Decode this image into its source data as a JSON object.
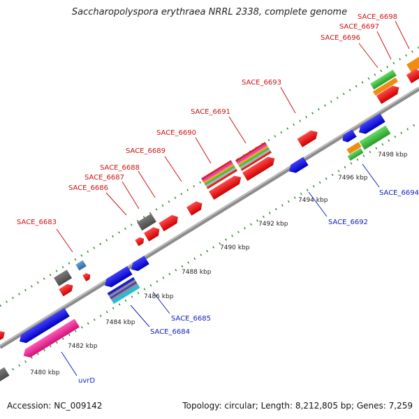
{
  "title": "Saccharopolyspora erythraea NRRL 2338, complete genome",
  "footer": {
    "accession": "Accession: NC_009142",
    "summary": "Topology: circular; Length: 8,212,805 bp; Genes: 7,259"
  },
  "colors": {
    "backbone": "#9a9a9a",
    "track_dots": "#2b8a2b",
    "label_top": "#d01010",
    "label_bottom": "#1020c0",
    "tick_label": "#222222"
  },
  "ticks": [
    {
      "label": "7480 kbp"
    },
    {
      "label": "7482 kbp"
    },
    {
      "label": "7484 kbp"
    },
    {
      "label": "7486 kbp"
    },
    {
      "label": "7488 kbp"
    },
    {
      "label": "7490 kbp"
    },
    {
      "label": "7492 kbp"
    },
    {
      "label": "7494 kbp"
    },
    {
      "label": "7496 kbp"
    },
    {
      "label": "7498 kbp"
    }
  ],
  "gene_labels_top": [
    {
      "name": "SACE_6683"
    },
    {
      "name": "SACE_6686"
    },
    {
      "name": "SACE_6687"
    },
    {
      "name": "SACE_6688"
    },
    {
      "name": "SACE_6689"
    },
    {
      "name": "SACE_6690"
    },
    {
      "name": "SACE_6691"
    },
    {
      "name": "SACE_6693"
    },
    {
      "name": "SACE_6696"
    },
    {
      "name": "SACE_6697"
    },
    {
      "name": "SACE_6698"
    }
  ],
  "gene_labels_bottom": [
    {
      "name": "uvrD"
    },
    {
      "name": "SACE_6684"
    },
    {
      "name": "SACE_6685"
    },
    {
      "name": "SACE_6692"
    },
    {
      "name": "SACE_6694"
    }
  ]
}
